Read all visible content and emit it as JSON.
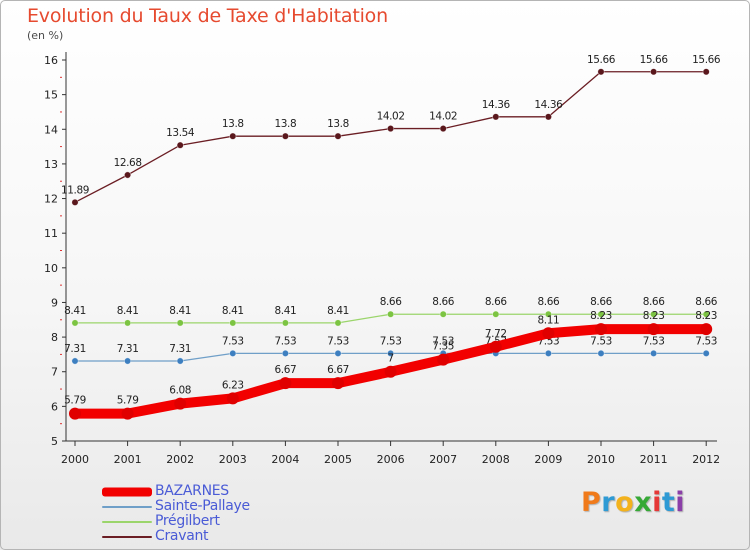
{
  "title": "Evolution du Taux de Taxe d'Habitation",
  "unit": "(en %)",
  "logo": {
    "text": "Proxiti",
    "colors": [
      "#f07a1a",
      "#2e9ad4",
      "#f3b21c",
      "#36a936",
      "#e53838",
      "#2e9ad4",
      "#8b3fa8"
    ]
  },
  "chart_data": {
    "type": "line",
    "title": "Evolution du Taux de Taxe d'Habitation",
    "ylabel": "(en %)",
    "xlabel": "",
    "ylim": [
      5,
      16
    ],
    "yticks": [
      5,
      6,
      7,
      8,
      9,
      10,
      11,
      12,
      13,
      14,
      15,
      16
    ],
    "grid": false,
    "legend_position": "bottom-left",
    "x": [
      "2000",
      "2001",
      "2002",
      "2003",
      "2004",
      "2005",
      "2006",
      "2007",
      "2008",
      "2009",
      "2010",
      "2011",
      "2012"
    ],
    "series": [
      {
        "name": "Cravant",
        "color": "#6b1e24",
        "marker": "#5a171c",
        "values": [
          11.89,
          12.68,
          13.54,
          13.8,
          13.8,
          13.8,
          14.02,
          14.02,
          14.36,
          14.36,
          15.66,
          15.66,
          15.66
        ],
        "labels": [
          "11.89",
          "12.68",
          "13.54",
          "13.8",
          "13.8",
          "13.8",
          "14.02",
          "14.02",
          "14.36",
          "14.36",
          "15.66",
          "15.66",
          "15.66"
        ]
      },
      {
        "name": "Prégilbert",
        "color": "#9bd56b",
        "marker": "#7cc442",
        "values": [
          8.41,
          8.41,
          8.41,
          8.41,
          8.41,
          8.41,
          8.66,
          8.66,
          8.66,
          8.66,
          8.66,
          8.66,
          8.66
        ],
        "labels": [
          "8.41",
          "8.41",
          "8.41",
          "8.41",
          "8.41",
          "8.41",
          "8.66",
          "8.66",
          "8.66",
          "8.66",
          "8.66",
          "8.66",
          "8.66"
        ]
      },
      {
        "name": "Sainte-Pallaye",
        "color": "#6f9fc8",
        "marker": "#3d7fc0",
        "values": [
          7.31,
          7.31,
          7.31,
          7.53,
          7.53,
          7.53,
          7.53,
          7.53,
          7.53,
          7.53,
          7.53,
          7.53,
          7.53
        ],
        "labels": [
          "7.31",
          "7.31",
          "7.31",
          "7.53",
          "7.53",
          "7.53",
          "7.53",
          "7.53",
          "7.53",
          "7.53",
          "7.53",
          "7.53",
          "7.53"
        ]
      },
      {
        "name": "BAZARNES",
        "color": "#f20000",
        "marker": "#e00000",
        "values": [
          5.79,
          5.79,
          6.08,
          6.23,
          6.67,
          6.67,
          7.0,
          7.35,
          7.72,
          8.11,
          8.23,
          8.23,
          8.23
        ],
        "labels": [
          "5.79",
          "5.79",
          "6.08",
          "6.23",
          "6.67",
          "6.67",
          "7",
          "7.35",
          "7.72",
          "8.11",
          "8.23",
          "8.23",
          "8.23"
        ]
      }
    ]
  },
  "legend": [
    {
      "label": "BAZARNES",
      "color": "#f20000",
      "thickness": 9
    },
    {
      "label": "Sainte-Pallaye",
      "color": "#6f9fc8",
      "thickness": 2
    },
    {
      "label": "Prégilbert",
      "color": "#9bd56b",
      "thickness": 2
    },
    {
      "label": "Cravant",
      "color": "#6b1e24",
      "thickness": 2
    }
  ]
}
